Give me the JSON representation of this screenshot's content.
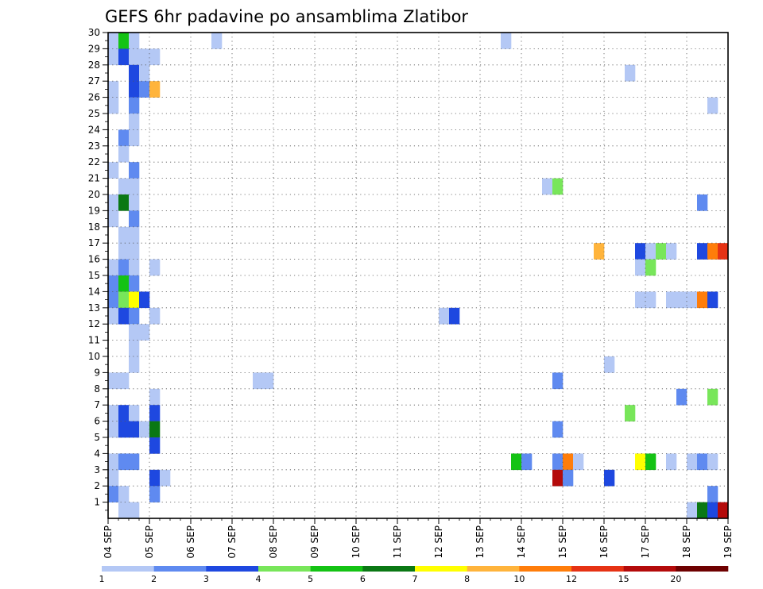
{
  "chart_data": {
    "type": "heatmap",
    "title": "GEFS 6hr padavine po ansamblima Zlatibor",
    "xlabel": "",
    "ylabel": "",
    "x_ticks": [
      "04 SEP",
      "05 SEP",
      "06 SEP",
      "07 SEP",
      "08 SEP",
      "09 SEP",
      "10 SEP",
      "11 SEP",
      "12 SEP",
      "13 SEP",
      "14 SEP",
      "15 SEP",
      "16 SEP",
      "17 SEP",
      "18 SEP",
      "19 SEP"
    ],
    "x_steps_per_day": 4,
    "y_ticks": [
      1,
      2,
      3,
      4,
      5,
      6,
      7,
      8,
      9,
      10,
      11,
      12,
      13,
      14,
      15,
      16,
      17,
      18,
      19,
      20,
      21,
      22,
      23,
      24,
      25,
      26,
      27,
      28,
      29,
      30
    ],
    "y_range": [
      0,
      30
    ],
    "grid": true,
    "colorbar": {
      "labels": [
        "1",
        "2",
        "3",
        "4",
        "5",
        "6",
        "7",
        "8",
        "10",
        "12",
        "15",
        "20"
      ],
      "colors": [
        "#b4c8f5",
        "#5f8af0",
        "#1e48e0",
        "#78e65a",
        "#14c314",
        "#0a7814",
        "#ffff00",
        "#ffb43c",
        "#ff7d0a",
        "#e63214",
        "#b40a0a",
        "#6e0000"
      ]
    },
    "cells": [
      [
        0,
        29,
        0
      ],
      [
        1,
        29,
        4
      ],
      [
        2,
        29,
        0
      ],
      [
        10,
        29,
        0
      ],
      [
        38,
        29,
        0
      ],
      [
        0,
        28,
        0
      ],
      [
        1,
        28,
        2
      ],
      [
        2,
        28,
        0
      ],
      [
        3,
        28,
        0
      ],
      [
        4,
        28,
        0
      ],
      [
        2,
        27,
        2
      ],
      [
        3,
        27,
        0
      ],
      [
        50,
        27,
        0
      ],
      [
        0,
        26,
        0
      ],
      [
        2,
        26,
        2
      ],
      [
        3,
        26,
        1
      ],
      [
        4,
        26,
        7
      ],
      [
        0,
        25,
        0
      ],
      [
        2,
        25,
        1
      ],
      [
        58,
        25,
        0
      ],
      [
        2,
        24,
        0
      ],
      [
        1,
        23,
        1
      ],
      [
        2,
        23,
        0
      ],
      [
        1,
        22,
        0
      ],
      [
        0,
        21,
        0
      ],
      [
        2,
        21,
        1
      ],
      [
        1,
        20,
        0
      ],
      [
        2,
        20,
        0
      ],
      [
        42,
        20,
        0
      ],
      [
        43,
        20,
        3
      ],
      [
        0,
        19,
        0
      ],
      [
        1,
        19,
        5
      ],
      [
        2,
        19,
        0
      ],
      [
        57,
        19,
        1
      ],
      [
        0,
        18,
        0
      ],
      [
        2,
        18,
        1
      ],
      [
        1,
        17,
        0
      ],
      [
        2,
        17,
        0
      ],
      [
        1,
        16,
        0
      ],
      [
        2,
        16,
        0
      ],
      [
        47,
        16,
        7
      ],
      [
        51,
        16,
        2
      ],
      [
        52,
        16,
        0
      ],
      [
        53,
        16,
        3
      ],
      [
        54,
        16,
        0
      ],
      [
        57,
        16,
        2
      ],
      [
        58,
        16,
        8
      ],
      [
        59,
        16,
        9
      ],
      [
        0,
        15,
        0
      ],
      [
        1,
        15,
        1
      ],
      [
        2,
        15,
        0
      ],
      [
        4,
        15,
        0
      ],
      [
        51,
        15,
        0
      ],
      [
        52,
        15,
        3
      ],
      [
        0,
        14,
        1
      ],
      [
        1,
        14,
        4
      ],
      [
        2,
        14,
        1
      ],
      [
        0,
        13,
        1
      ],
      [
        1,
        13,
        3
      ],
      [
        2,
        13,
        6
      ],
      [
        3,
        13,
        2
      ],
      [
        51,
        13,
        0
      ],
      [
        52,
        13,
        0
      ],
      [
        54,
        13,
        0
      ],
      [
        55,
        13,
        0
      ],
      [
        56,
        13,
        0
      ],
      [
        57,
        13,
        8
      ],
      [
        58,
        13,
        2
      ],
      [
        0,
        12,
        0
      ],
      [
        1,
        12,
        2
      ],
      [
        2,
        12,
        1
      ],
      [
        4,
        12,
        0
      ],
      [
        32,
        12,
        0
      ],
      [
        33,
        12,
        2
      ],
      [
        2,
        11,
        0
      ],
      [
        3,
        11,
        0
      ],
      [
        2,
        10,
        0
      ],
      [
        2,
        9,
        0
      ],
      [
        48,
        9,
        0
      ],
      [
        0,
        8,
        0
      ],
      [
        1,
        8,
        0
      ],
      [
        14,
        8,
        0
      ],
      [
        15,
        8,
        0
      ],
      [
        43,
        8,
        1
      ],
      [
        4,
        7,
        0
      ],
      [
        55,
        7,
        1
      ],
      [
        58,
        7,
        3
      ],
      [
        0,
        6,
        0
      ],
      [
        1,
        6,
        2
      ],
      [
        2,
        6,
        0
      ],
      [
        4,
        6,
        2
      ],
      [
        50,
        6,
        3
      ],
      [
        0,
        5,
        0
      ],
      [
        1,
        5,
        2
      ],
      [
        2,
        5,
        2
      ],
      [
        3,
        5,
        0
      ],
      [
        4,
        5,
        5
      ],
      [
        43,
        5,
        1
      ],
      [
        4,
        4,
        2
      ],
      [
        0,
        3,
        0
      ],
      [
        1,
        3,
        1
      ],
      [
        2,
        3,
        1
      ],
      [
        39,
        3,
        4
      ],
      [
        40,
        3,
        1
      ],
      [
        43,
        3,
        1
      ],
      [
        44,
        3,
        8
      ],
      [
        45,
        3,
        0
      ],
      [
        51,
        3,
        6
      ],
      [
        52,
        3,
        4
      ],
      [
        54,
        3,
        0
      ],
      [
        56,
        3,
        0
      ],
      [
        57,
        3,
        1
      ],
      [
        58,
        3,
        0
      ],
      [
        0,
        2,
        0
      ],
      [
        4,
        2,
        2
      ],
      [
        5,
        2,
        0
      ],
      [
        43,
        2,
        10
      ],
      [
        44,
        2,
        1
      ],
      [
        48,
        2,
        2
      ],
      [
        0,
        1,
        1
      ],
      [
        1,
        1,
        0
      ],
      [
        4,
        1,
        1
      ],
      [
        58,
        1,
        1
      ],
      [
        1,
        0,
        0
      ],
      [
        2,
        0,
        0
      ],
      [
        56,
        0,
        0
      ],
      [
        57,
        0,
        5
      ],
      [
        58,
        0,
        2
      ],
      [
        59,
        0,
        10
      ]
    ]
  }
}
